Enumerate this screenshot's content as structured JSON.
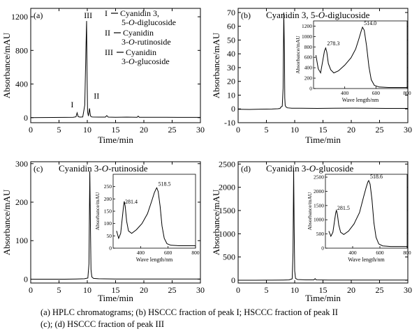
{
  "caption": {
    "line1": "(a) HPLC chromatograms; (b) HSCCC fraction of peak I; HSCCC fraction of peak II",
    "line2": "(c); (d) HSCCC fraction of peak III"
  },
  "chart_data": [
    {
      "type": "line",
      "panel": "(a)",
      "title": "",
      "xlabel": "Time/min",
      "ylabel": "Absorbance/mAU",
      "xlim": [
        0,
        30
      ],
      "ylim": [
        -60,
        1300
      ],
      "xticks": [
        0,
        5,
        10,
        15,
        20,
        25,
        30
      ],
      "yticks": [
        0,
        400,
        800,
        1200
      ],
      "series": [
        {
          "x": [
            0,
            2,
            4,
            6,
            7.5,
            8.0,
            8.2,
            8.4,
            8.7,
            9.2,
            9.55,
            9.75,
            9.88,
            9.95,
            10.05,
            10.2,
            10.4,
            10.55,
            10.75,
            11.0,
            12.0,
            13.2,
            13.45,
            13.7,
            15,
            17,
            18.8,
            19.0,
            19.2,
            21,
            24,
            27,
            30
          ],
          "y": [
            0,
            1,
            2,
            3,
            5,
            10,
            58,
            12,
            6,
            8,
            150,
            800,
            1150,
            560,
            70,
            20,
            110,
            22,
            9,
            7,
            6,
            6,
            25,
            6,
            5,
            6,
            5,
            18,
            5,
            4,
            4,
            3,
            3
          ]
        }
      ],
      "annotations": [
        {
          "text": "I",
          "x": 8.2,
          "y": 58
        },
        {
          "text": "III",
          "x": 9.9,
          "y": 1150
        },
        {
          "text": "II",
          "x": 10.4,
          "y": 110
        }
      ],
      "legend": [
        {
          "num": "I",
          "lines": [
            "Cyanidin 3,",
            "5-O-diglucoside"
          ]
        },
        {
          "num": "II",
          "lines": [
            "Cyanidin",
            "3-O-rutinoside"
          ]
        },
        {
          "num": "III",
          "lines": [
            "Cyanidin",
            "3-O-glucoside"
          ]
        }
      ]
    },
    {
      "type": "line",
      "panel": "(b)",
      "title": "Cyanidin 3, 5-O-diglucoside",
      "xlabel": "Time/min",
      "ylabel": "Absorbance/mAU",
      "xlim": [
        0,
        30
      ],
      "ylim": [
        -10,
        73
      ],
      "xticks": [
        0,
        5,
        10,
        15,
        20,
        25,
        30
      ],
      "yticks": [
        -10,
        0,
        10,
        20,
        30,
        40,
        50,
        60,
        70
      ],
      "series": [
        {
          "x": [
            0,
            2,
            4,
            6,
            7.0,
            7.4,
            7.6,
            7.8,
            7.95,
            8.08,
            8.18,
            8.25,
            8.32,
            8.45,
            8.7,
            9.5,
            11,
            14,
            17,
            20,
            23,
            26,
            30
          ],
          "y": [
            -0.3,
            -0.4,
            -0.2,
            -0.1,
            0.1,
            0.3,
            1.5,
            2.0,
            15,
            70,
            40,
            8,
            2.5,
            1.5,
            0.8,
            0.5,
            0.5,
            0.4,
            0.5,
            0.6,
            0.5,
            0.4,
            0.4
          ]
        }
      ],
      "inset": {
        "xlabel": "Wave length/nm",
        "ylabel": "Absorbance/mAU",
        "xlim": [
          200,
          800
        ],
        "ylim": [
          0,
          1300
        ],
        "xticks": [
          400,
          600,
          800
        ],
        "yticks": [
          0,
          200,
          400,
          600,
          800,
          1000,
          1200
        ],
        "peaks": [
          "278.3",
          "514.0"
        ],
        "x": [
          215,
          230,
          245,
          258,
          270,
          278,
          285,
          295,
          310,
          330,
          360,
          400,
          440,
          470,
          490,
          505,
          514,
          525,
          540,
          555,
          570,
          590,
          620,
          680,
          750,
          800
        ],
        "y": [
          640,
          380,
          300,
          520,
          720,
          780,
          700,
          480,
          360,
          300,
          340,
          450,
          590,
          760,
          950,
          1100,
          1180,
          1120,
          820,
          420,
          170,
          60,
          30,
          20,
          20,
          20
        ]
      }
    },
    {
      "type": "line",
      "panel": "(c)",
      "title": "Cyanidin 3-O-rutinoside",
      "xlabel": "Time/min",
      "ylabel": "Absorbance/mAU",
      "xlim": [
        0,
        30
      ],
      "ylim": [
        -10,
        305
      ],
      "xticks": [
        0,
        5,
        10,
        15,
        20,
        25,
        30
      ],
      "yticks": [
        0,
        100,
        200,
        300
      ],
      "series": [
        {
          "x": [
            0,
            3,
            6,
            8,
            9.5,
            10.1,
            10.3,
            10.45,
            10.55,
            10.65,
            10.8,
            11.1,
            12,
            15,
            20,
            25,
            30
          ],
          "y": [
            0,
            0,
            0,
            0.5,
            1,
            3,
            40,
            280,
            140,
            25,
            6,
            2,
            1,
            0.5,
            0.5,
            0.3,
            0.3
          ]
        }
      ],
      "inset": {
        "xlabel": "Wave length/nm",
        "ylabel": "Absorbance/mAU",
        "xlim": [
          200,
          800
        ],
        "ylim": [
          0,
          300
        ],
        "xticks": [
          400,
          600,
          800
        ],
        "yticks": [
          0,
          50,
          100,
          150,
          200,
          250
        ],
        "peaks": [
          "281.4",
          "518.5"
        ],
        "x": [
          225,
          240,
          255,
          268,
          276,
          281,
          288,
          298,
          312,
          335,
          370,
          410,
          450,
          480,
          500,
          512,
          518,
          528,
          542,
          556,
          572,
          592,
          620,
          680,
          760,
          800
        ],
        "y": [
          70,
          40,
          60,
          130,
          170,
          190,
          170,
          110,
          70,
          60,
          75,
          100,
          140,
          190,
          225,
          240,
          245,
          230,
          170,
          90,
          40,
          18,
          12,
          10,
          10,
          10
        ]
      }
    },
    {
      "type": "line",
      "panel": "(d)",
      "title": "Cyanidin 3-O-glucoside",
      "xlabel": "Time/min",
      "ylabel": "Absorbance/mAU",
      "xlim": [
        0,
        30
      ],
      "ylim": [
        -60,
        2550
      ],
      "xticks": [
        0,
        5,
        10,
        15,
        20,
        25,
        30
      ],
      "yticks": [
        0,
        500,
        1000,
        1500,
        2000,
        2500
      ],
      "series": [
        {
          "x": [
            0,
            3,
            6,
            8,
            9.0,
            9.55,
            9.7,
            9.82,
            9.9,
            10.0,
            10.15,
            10.5,
            12,
            13.4,
            13.6,
            13.8,
            16,
            20,
            25,
            30
          ],
          "y": [
            0,
            0,
            2,
            5,
            8,
            30,
            600,
            2400,
            1200,
            200,
            40,
            15,
            8,
            8,
            35,
            8,
            5,
            4,
            3,
            3
          ]
        }
      ],
      "inset": {
        "xlabel": "Wave length/nm",
        "ylabel": "Absorbance/mAU",
        "xlim": [
          200,
          800
        ],
        "ylim": [
          0,
          2600
        ],
        "xticks": [
          400,
          600,
          800
        ],
        "yticks": [
          0,
          500,
          1000,
          1500,
          2000,
          2500
        ],
        "peaks": [
          "281.5",
          "518.6"
        ],
        "x": [
          225,
          240,
          255,
          268,
          276,
          281,
          288,
          298,
          312,
          335,
          370,
          410,
          450,
          480,
          500,
          512,
          518,
          528,
          542,
          556,
          572,
          592,
          620,
          680,
          760,
          800
        ],
        "y": [
          600,
          420,
          560,
          1000,
          1250,
          1330,
          1180,
          820,
          560,
          480,
          600,
          850,
          1250,
          1800,
          2150,
          2330,
          2380,
          2250,
          1700,
          900,
          380,
          150,
          80,
          60,
          60,
          60
        ]
      }
    }
  ]
}
